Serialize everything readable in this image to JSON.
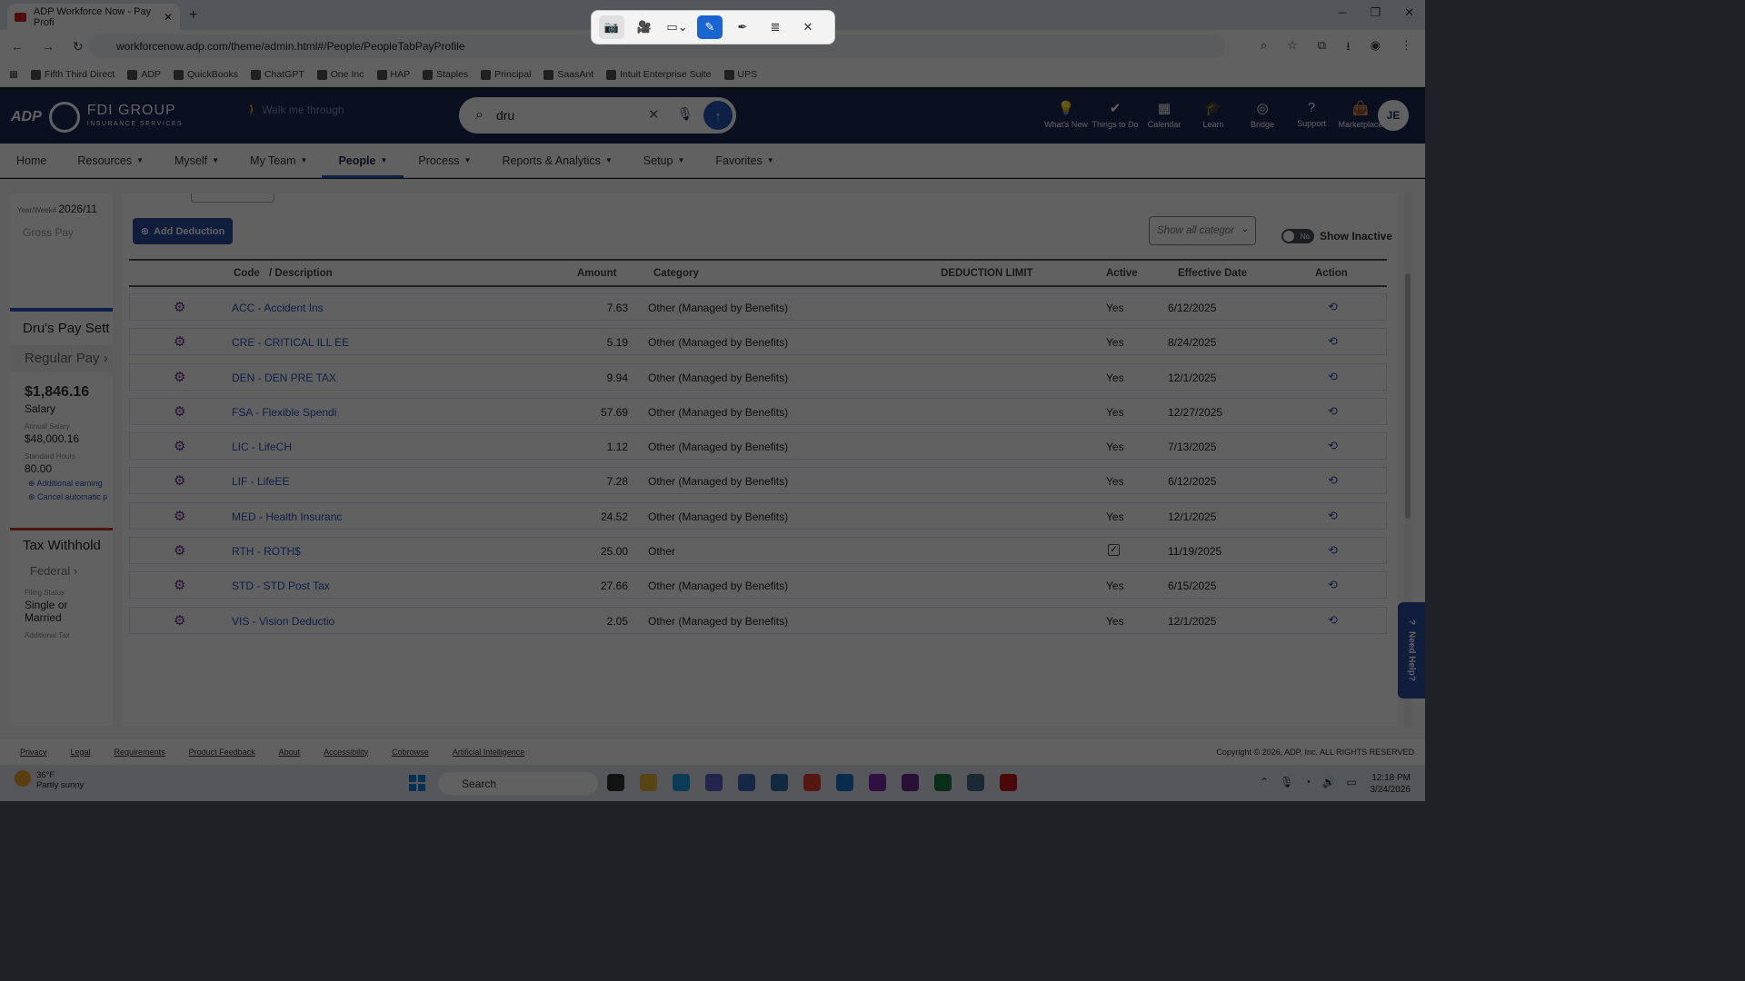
{
  "browser": {
    "tab_title": "ADP Workforce Now - Pay Profi",
    "url": "workforcenow.adp.com/theme/admin.html#/People/PeopleTabPayProfile",
    "bookmarks": [
      "Fifth Third Direct",
      "ADP",
      "QuickBooks",
      "ChatGPT",
      "One Inc",
      "HAP",
      "Staples",
      "Principal",
      "SaasAnt",
      "Intuit Enterprise Suite",
      "UPS"
    ]
  },
  "header": {
    "brand": "FDI GROUP",
    "brand_sub": "INSURANCE SERVICES",
    "adp": "ADP",
    "walk": "Walk me through",
    "search_value": "dru",
    "icons": [
      {
        "label": "What's New",
        "icon": "bulb-icon",
        "glyph": "💡"
      },
      {
        "label": "Things to Do",
        "icon": "check-icon",
        "glyph": "✔"
      },
      {
        "label": "Calendar",
        "icon": "calendar-icon",
        "glyph": "▦"
      },
      {
        "label": "Learn",
        "icon": "graduation-icon",
        "glyph": "🎓"
      },
      {
        "label": "Bridge",
        "icon": "bridge-icon",
        "glyph": "◎"
      },
      {
        "label": "Support",
        "icon": "help-icon",
        "glyph": "?"
      },
      {
        "label": "Marketplace",
        "icon": "bag-icon",
        "glyph": "👜"
      }
    ],
    "avatar": "JE"
  },
  "menu": [
    "Home",
    "Resources",
    "Myself",
    "My Team",
    "People",
    "Process",
    "Reports & Analytics",
    "Setup",
    "Favorites"
  ],
  "left_panel": {
    "yearweek_label": "Year/Week#",
    "yearweek": "2026/11",
    "gross_pay": "Gross Pay",
    "pay_settings": "Dru's Pay Sett",
    "regular_pay": "Regular Pay ›",
    "salary_amount": "$1,846.16",
    "salary_label": "Salary",
    "annual_label": "Annual Salary",
    "annual_value": "$48,000.16",
    "hours_label": "Standard Hours",
    "hours_value": "80.00",
    "link1": "Additional earning",
    "link2": "Cancel automatic p",
    "tax": "Tax Withhold",
    "federal": "Federal ›",
    "filing_label": "Filing Status",
    "filing_value": "Single or Married",
    "addl_tax": "Additional Tax"
  },
  "toolbar": {
    "add_label": "Add Deduction",
    "category_placeholder": "Show all categor",
    "toggle_label": "No",
    "show_inactive": "Show Inactive"
  },
  "table": {
    "headers": {
      "code": "Code",
      "desc": "/ Description",
      "amount": "Amount",
      "category": "Category",
      "limit": "DEDUCTION LIMIT",
      "active": "Active",
      "effective": "Effective Date",
      "action": "Action"
    },
    "rows": [
      {
        "code": "ACC - Accident Ins",
        "amount": "7.63",
        "category": "Other (Managed by Benefits)",
        "active": "Yes",
        "effective": "6/12/2025"
      },
      {
        "code": "CRE - CRITICAL ILL EE",
        "amount": "5.19",
        "category": "Other (Managed by Benefits)",
        "active": "Yes",
        "effective": "8/24/2025"
      },
      {
        "code": "DEN - DEN PRE TAX",
        "amount": "9.94",
        "category": "Other (Managed by Benefits)",
        "active": "Yes",
        "effective": "12/1/2025"
      },
      {
        "code": "FSA - Flexible Spendi",
        "amount": "57.69",
        "category": "Other (Managed by Benefits)",
        "active": "Yes",
        "effective": "12/27/2025"
      },
      {
        "code": "LIC - LifeCH",
        "amount": "1.12",
        "category": "Other (Managed by Benefits)",
        "active": "Yes",
        "effective": "7/13/2025"
      },
      {
        "code": "LIF - LifeEE",
        "amount": "7.28",
        "category": "Other (Managed by Benefits)",
        "active": "Yes",
        "effective": "6/12/2025"
      },
      {
        "code": "MED - Health Insuranc",
        "amount": "24.52",
        "category": "Other (Managed by Benefits)",
        "active": "Yes",
        "effective": "12/1/2025"
      },
      {
        "code": "RTH - ROTH$",
        "amount": "25.00",
        "category": "Other",
        "active": "checkbox",
        "effective": "11/19/2025"
      },
      {
        "code": "STD - STD Post Tax",
        "amount": "27.66",
        "category": "Other (Managed by Benefits)",
        "active": "Yes",
        "effective": "6/15/2025"
      },
      {
        "code": "VIS - Vision Deductio",
        "amount": "2.05",
        "category": "Other (Managed by Benefits)",
        "active": "Yes",
        "effective": "12/1/2025"
      }
    ]
  },
  "need_help": "Need Help?",
  "footer": {
    "links": [
      "Privacy",
      "Legal",
      "Requirements",
      "Product Feedback",
      "About",
      "Accessibility",
      "Cobrowse",
      "Artificial Intelligence"
    ],
    "copyright": "Copyright © 2026, ADP, Inc. ALL RIGHTS RESERVED"
  },
  "taskbar": {
    "temp": "36°F",
    "weather": "Partly sunny",
    "search": "Search",
    "time": "12:18 PM",
    "date": "3/24/2026"
  },
  "colors": {
    "brand": "#1f2c58",
    "accent": "#2655b8",
    "gear": "#6a2c91"
  }
}
